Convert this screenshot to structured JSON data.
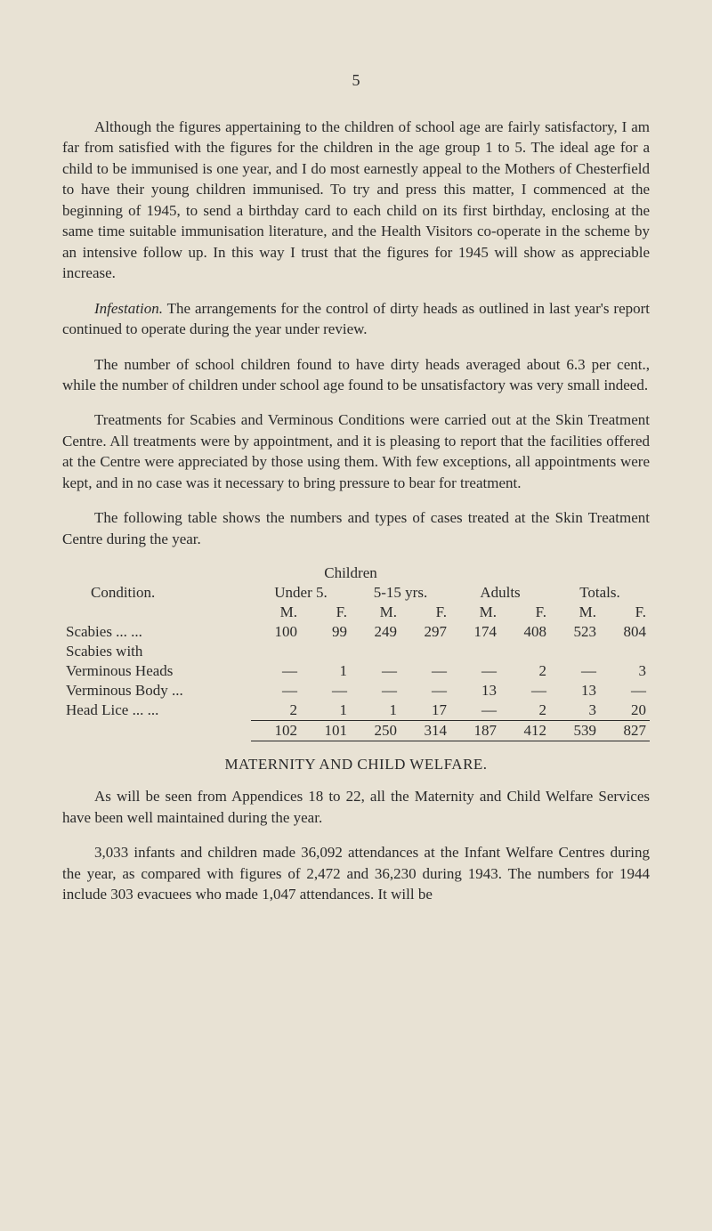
{
  "page_number": "5",
  "para1": "Although the figures appertaining to the children of school age are fairly satisfactory, I am far from satisfied with the figures for the children in the age group 1 to 5. The ideal age for a child to be immunised is one year, and I do most earnestly appeal to the Mothers of Chesterfield to have their young children immunised. To try and press this matter, I commenced at the beginning of 1945, to send a birthday card to each child on its first birthday, enclosing at the same time suitable immunis­ation literature, and the Health Visitors co-operate in the scheme by an intensive follow up. In this way I trust that the figures for 1945 will show as appreciable increase.",
  "para2_lead": "Infestation.",
  "para2": " The arrangements for the control of dirty heads as outlined in last year's report continued to operate during the year under review.",
  "para3": "The number of school children found to have dirty heads averaged about 6.3 per cent., while the number of children under school age found to be unsatisfactory was very small indeed.",
  "para4": "Treatments for Scabies and Verminous Conditions were carried out at the Skin Treatment Centre. All treatments were by appointment, and it is pleasing to report that the facilities offered at the Centre were appreciated by those using them. With few exceptions, all appointments were kept, and in no case was it necessary to bring pressure to bear for treatment.",
  "para5": "The following table shows the numbers and types of cases treated at the Skin Treatment Centre during the year.",
  "table": {
    "header_children": "Children",
    "header_condition": "Condition.",
    "header_under5": "Under 5.",
    "header_515": "5-15 yrs.",
    "header_adults": "Adults",
    "header_totals": "Totals.",
    "M": "M.",
    "F": "F.",
    "rows": [
      {
        "label": "Scabies  ...    ...",
        "v": [
          "100",
          "99",
          "249",
          "297",
          "174",
          "408",
          "523",
          "804"
        ]
      },
      {
        "label": "Scabies with",
        "v": [
          "",
          "",
          "",
          "",
          "",
          "",
          "",
          ""
        ]
      },
      {
        "label": "  Verminous Heads",
        "v": [
          "—",
          "1",
          "—",
          "—",
          "—",
          "2",
          "—",
          "3"
        ]
      },
      {
        "label": "Verminous Body ...",
        "v": [
          "—",
          "—",
          "—",
          "—",
          "13",
          "—",
          "13",
          "—"
        ]
      },
      {
        "label": "Head Lice ...    ...",
        "v": [
          "2",
          "1",
          "1",
          "17",
          "—",
          "2",
          "3",
          "20"
        ]
      }
    ],
    "totals": [
      "102",
      "101",
      "250",
      "314",
      "187",
      "412",
      "539",
      "827"
    ]
  },
  "section_heading": "MATERNITY AND CHILD WELFARE.",
  "para6": "As will be seen from Appendices 18 to 22, all the Maternity and Child Welfare Services have been well maintained during the year.",
  "para7": "3,033 infants and children made 36,092 attendances at the Infant Welfare Centres during the year, as compared with figures of 2,472 and 36,230 during 1943. The numbers for 1944 include 303 evacuees who made 1,047 attendances. It will be"
}
